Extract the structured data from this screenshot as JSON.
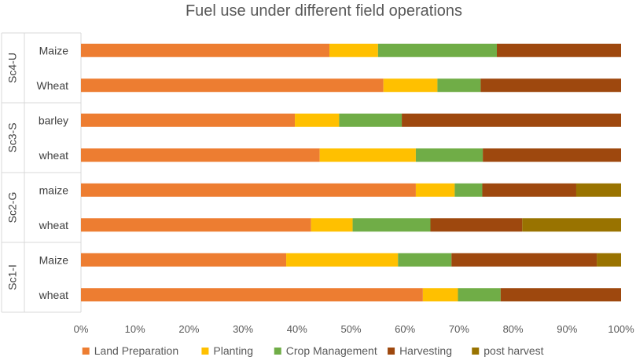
{
  "chart_data": {
    "type": "bar",
    "orientation": "horizontal",
    "stacking": "percent",
    "title": "Fuel use under different field operations",
    "xlabel": "",
    "ylabel": "",
    "xlim": [
      0,
      100
    ],
    "x_ticks": [
      "0%",
      "10%",
      "20%",
      "30%",
      "40%",
      "50%",
      "60%",
      "70%",
      "80%",
      "90%",
      "100%"
    ],
    "grid": false,
    "legend_position": "bottom",
    "groups": [
      {
        "label": "Sc4-U",
        "categories": [
          "Maize",
          "Wheat"
        ]
      },
      {
        "label": "Sc3-S",
        "categories": [
          "barley",
          "wheat"
        ]
      },
      {
        "label": "Sc2-G",
        "categories": [
          "maize",
          "wheat"
        ]
      },
      {
        "label": "Sc1-I",
        "categories": [
          "Maize",
          "wheat"
        ]
      }
    ],
    "series": [
      {
        "name": "Land Preparation",
        "color": "#ED7D31",
        "values": [
          46,
          56,
          39.6,
          44.2,
          62,
          42.6,
          38,
          63.3
        ]
      },
      {
        "name": "Planting",
        "color": "#FFC000",
        "values": [
          9,
          10,
          8.2,
          17.8,
          7.2,
          7.7,
          20.7,
          6.5
        ]
      },
      {
        "name": "Crop Management",
        "color": "#70AD47",
        "values": [
          22,
          8,
          11.6,
          12.4,
          5.1,
          14.4,
          9.9,
          7.9
        ]
      },
      {
        "name": "Harvesting",
        "color": "#9E480E",
        "values": [
          23,
          26,
          40.6,
          25.6,
          17.4,
          17,
          26.9,
          22.3
        ]
      },
      {
        "name": "post harvest",
        "color": "#997300",
        "values": [
          0,
          0,
          0,
          0,
          8.3,
          18.3,
          4.5,
          0
        ]
      }
    ]
  }
}
